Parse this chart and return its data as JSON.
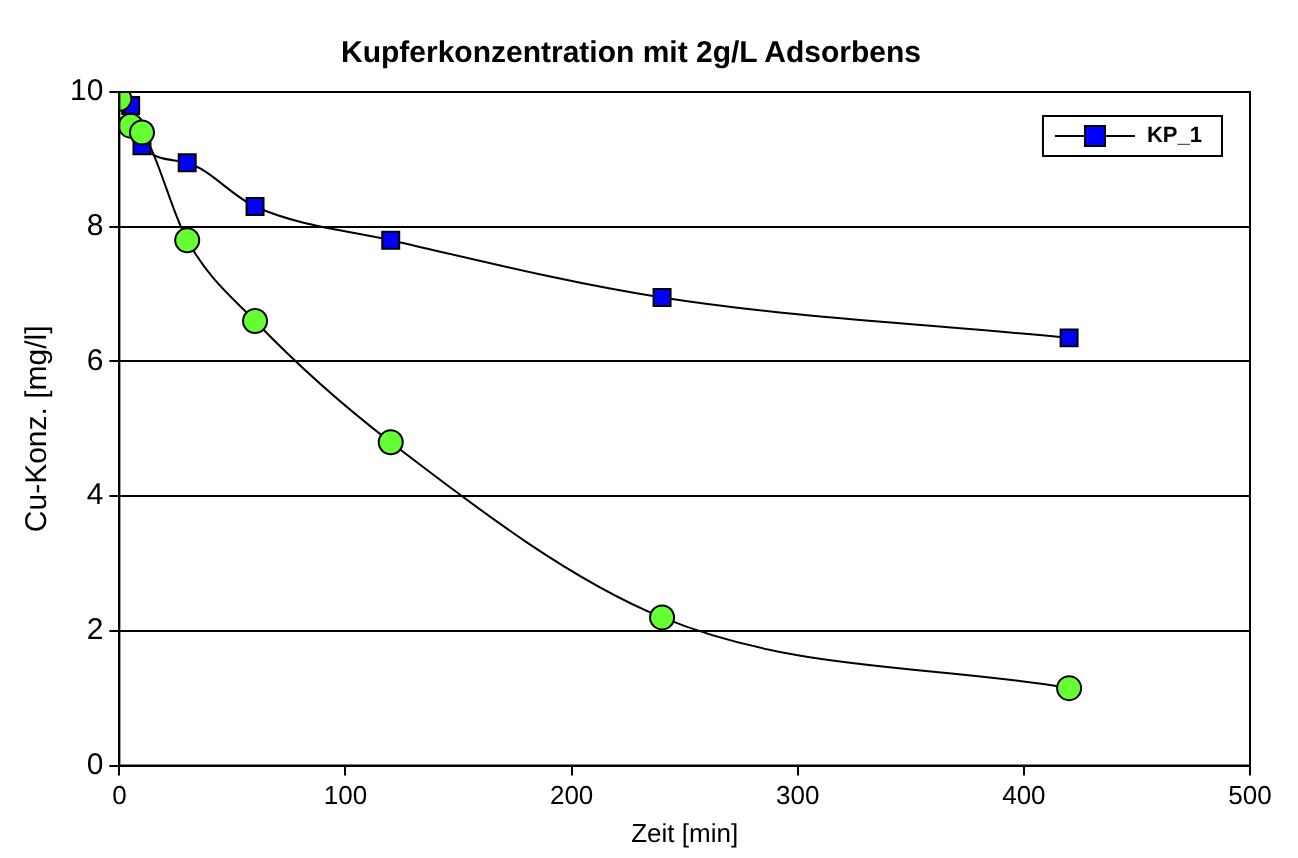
{
  "chart_data": {
    "type": "line",
    "title": "Kupferkonzentration mit 2g/L Adsorbens",
    "xlabel": "Zeit [min]",
    "ylabel": "Cu-Konz. [mg/l]",
    "x": [
      0,
      5,
      10,
      30,
      60,
      120,
      240,
      420
    ],
    "series": [
      {
        "color": "#66ff33",
        "marker": "circle",
        "values": [
          9.9,
          9.5,
          9.4,
          7.8,
          6.6,
          4.8,
          2.2,
          1.15
        ]
      },
      {
        "name": "KP_1",
        "color": "#0000ff",
        "marker": "square",
        "values": [
          9.9,
          9.8,
          9.2,
          8.95,
          8.3,
          7.8,
          6.95,
          6.35
        ]
      }
    ],
    "xlim": [
      0,
      500
    ],
    "xticks": [
      0,
      100,
      200,
      300,
      400,
      500
    ],
    "ylim": [
      0,
      10
    ],
    "yticks": [
      0,
      2,
      4,
      6,
      8,
      10
    ],
    "grid": "y",
    "legend": "top right"
  }
}
